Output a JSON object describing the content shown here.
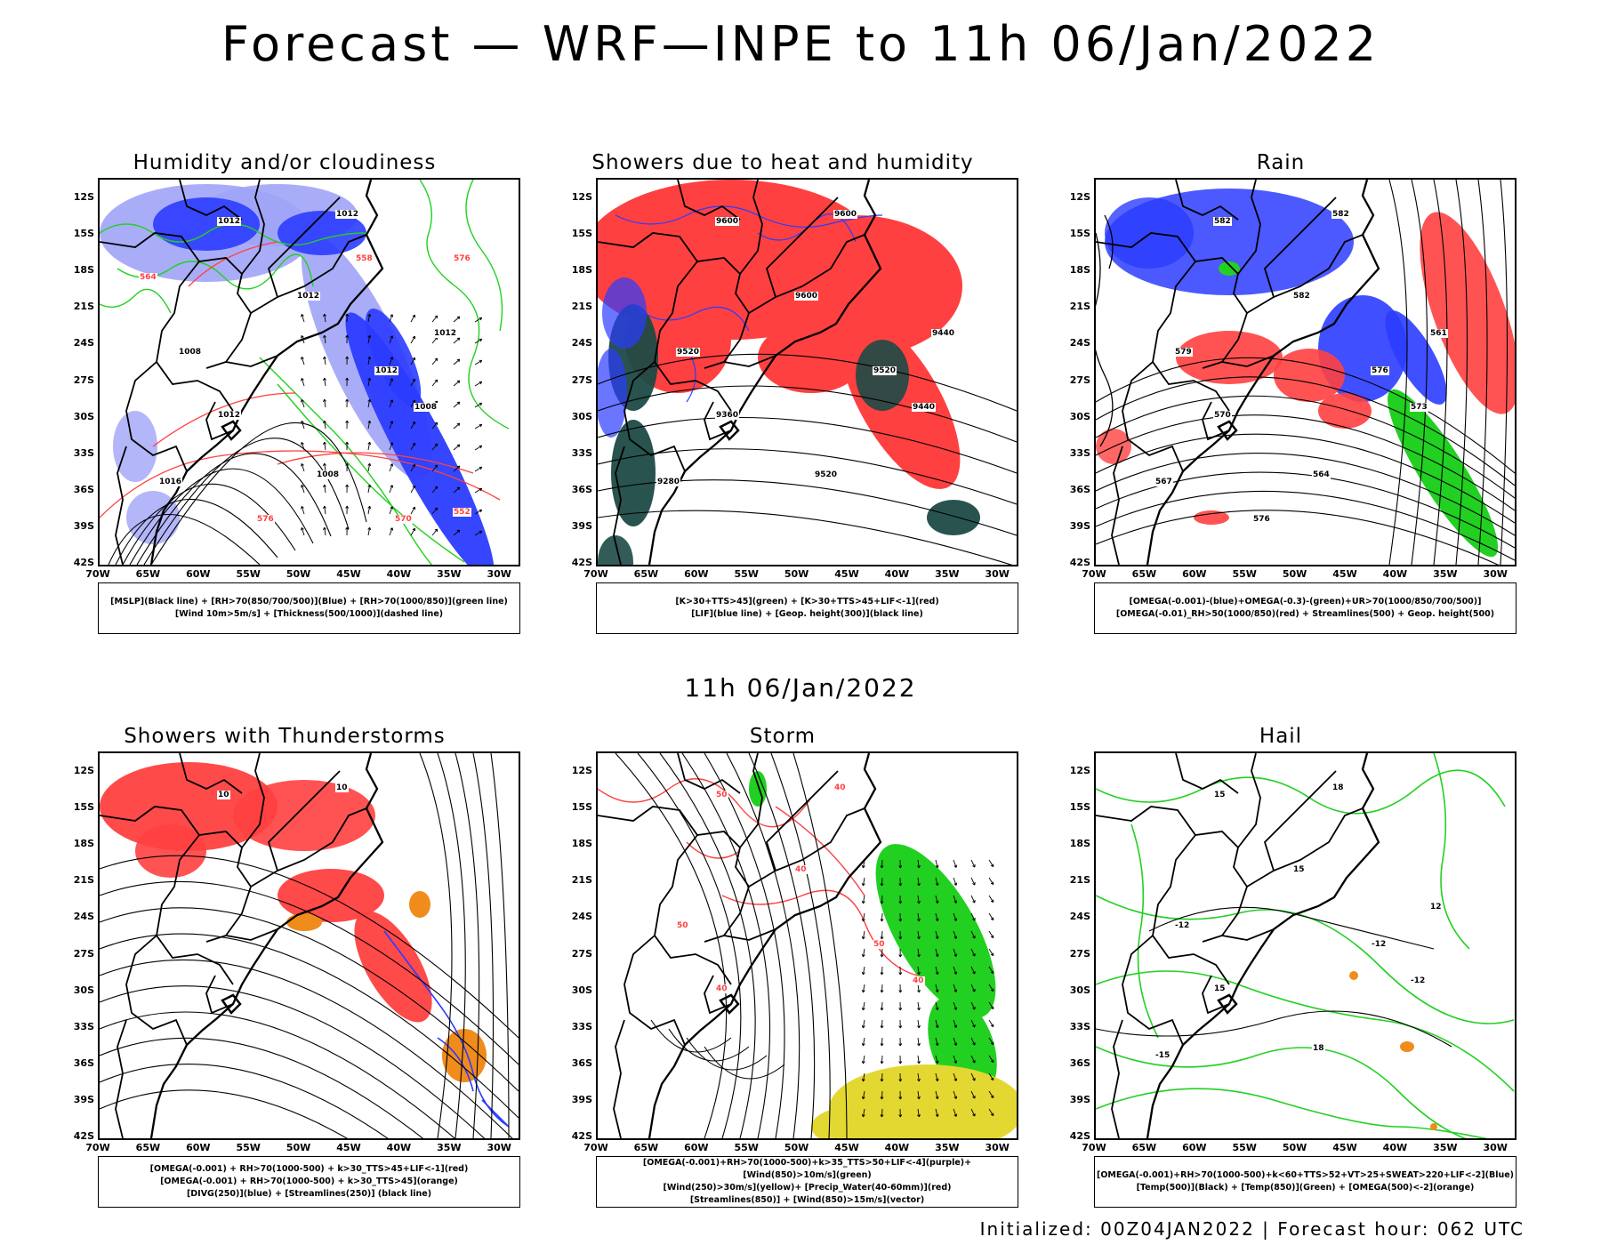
{
  "title": "Forecast — WRF—INPE to 11h 06/Jan/2022",
  "mid_title": "11h 06/Jan/2022",
  "footer": "Initialized: 00Z04JAN2022 | Forecast hour: 062 UTC",
  "lat_labels": [
    "12S",
    "15S",
    "18S",
    "21S",
    "24S",
    "27S",
    "30S",
    "33S",
    "36S",
    "39S",
    "42S"
  ],
  "lon_labels": [
    "70W",
    "65W",
    "60W",
    "55W",
    "50W",
    "45W",
    "40W",
    "35W",
    "30W"
  ],
  "colors": {
    "red": "#ff4040",
    "blue": "#2b3cff",
    "lightblue": "#a0a4f7",
    "green": "#22d022",
    "darkteal": "#1d4a46",
    "yellow": "#e3d832",
    "orange": "#f08c1c"
  },
  "panels": [
    {
      "title": "Humidity and/or cloudiness",
      "legend": [
        "[MSLP](Black line) + [RH>70(850/700/500)](Blue) + [RH>70(1000/850)](green line)",
        "[Wind 10m>5m/s] + [Thickness(500/1000)](dashed line)"
      ],
      "contour_labels": [
        "1012",
        "1012",
        "1012",
        "1008",
        "1012",
        "1008",
        "1012",
        "1016",
        "1008",
        "1012",
        "576",
        "570",
        "576",
        "564",
        "558",
        "552"
      ]
    },
    {
      "title": "Showers due to heat and humidity",
      "legend": [
        "[K>30+TTS>45](green) + [K>30+TTS>45+LIF<-1](red)",
        "[LIF](blue line) + [Geop. height(300)](black line)"
      ],
      "contour_labels": [
        "9600",
        "9600",
        "9600",
        "9520",
        "9520",
        "9440",
        "9360",
        "9280",
        "9520",
        "9440"
      ]
    },
    {
      "title": "Rain",
      "legend": [
        "[OMEGA(-0.001)-(blue)+OMEGA(-0.3)-(green)+UR>70(1000/850/700/500)]",
        "[OMEGA(-0.01)_RH>50(1000/850)(red) + Streamlines(500) + Geop. height(500)"
      ],
      "contour_labels": [
        "582",
        "582",
        "582",
        "579",
        "576",
        "573",
        "570",
        "567",
        "564",
        "561",
        "576"
      ]
    },
    {
      "title": "Showers with Thunderstorms",
      "legend": [
        "[OMEGA(-0.001) + RH>70(1000-500) + k>30_TTS>45+LIF<-1](red)",
        "[OMEGA(-0.001) + RH>70(1000-500) + k>30_TTS>45](orange)",
        "[DIVG(250)](blue) + [Streamlines(250)] (black line)"
      ],
      "contour_labels": [
        "10",
        "10"
      ]
    },
    {
      "title": "Storm",
      "legend": [
        "[OMEGA(-0.001)+RH>70(1000-500)+k>35_TTS>50+LIF<-4](purple)+[Wind(850)>10m/s](green)",
        "[Wind(250)>30m/s](yellow)+ [Precip_Water(40-60mm)](red)",
        "[Streamlines(850)] + [Wind(850)>15m/s](vector)"
      ],
      "contour_labels": [
        "50",
        "40",
        "40",
        "50",
        "50",
        "40",
        "40"
      ]
    },
    {
      "title": "Hail",
      "legend": [
        "[OMEGA(-0.001)+RH>70(1000-500)+k<60+TTS>52+VT>25+SWEAT>220+LIF<-2](Blue)",
        "[Temp(500)](Black) + [Temp(850)](Green) + [OMEGA(500)<-2](orange)"
      ],
      "contour_labels": [
        "15",
        "18",
        "15",
        "-12",
        "-12",
        "-12",
        "15",
        "-15",
        "18",
        "12"
      ]
    }
  ]
}
